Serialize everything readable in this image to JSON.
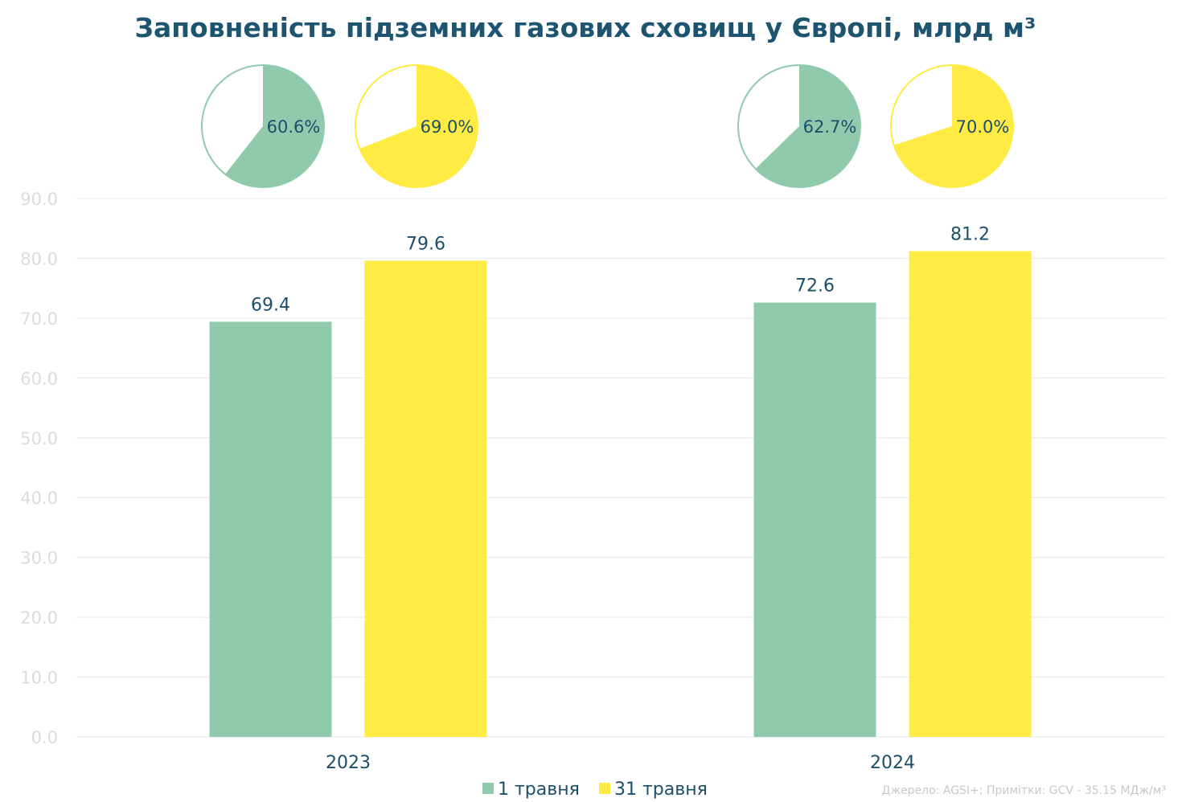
{
  "title": "Заповненість підземних газових сховищ у Європі, млрд м³",
  "source_note": "Джерело: AGSI+; Примітки: GCV - 35.15 МДж/м³",
  "colors": {
    "may1": "#8fcaad",
    "may31": "#ffeb43",
    "text": "#1d4e6a",
    "title": "#1d5571",
    "grid": "#efefef",
    "ytick": "#d7dcdf"
  },
  "chart_data": {
    "type": "bar",
    "categories": [
      "2023",
      "2024"
    ],
    "series": [
      {
        "name": "1 травня",
        "values": [
          69.4,
          72.6
        ],
        "labels": [
          "69.4",
          "72.6"
        ],
        "color": "#8fcaad"
      },
      {
        "name": "31 травня",
        "values": [
          79.6,
          81.2
        ],
        "labels": [
          "79.6",
          "81.2"
        ],
        "color": "#ffeb43"
      }
    ],
    "yticks": [
      "0.0",
      "10.0",
      "20.0",
      "30.0",
      "40.0",
      "50.0",
      "60.0",
      "70.0",
      "80.0",
      "90.0"
    ],
    "ylim": [
      0,
      90
    ],
    "grid": true,
    "legend": "bottom-center",
    "pies": [
      {
        "category": "2023",
        "series": "1 травня",
        "percent": 60.6,
        "label": "60.6%",
        "color": "#8fcaad"
      },
      {
        "category": "2023",
        "series": "31 травня",
        "percent": 69.0,
        "label": "69.0%",
        "color": "#ffeb43"
      },
      {
        "category": "2024",
        "series": "1 травня",
        "percent": 62.7,
        "label": "62.7%",
        "color": "#8fcaad"
      },
      {
        "category": "2024",
        "series": "31 травня",
        "percent": 70.0,
        "label": "70.0%",
        "color": "#ffeb43"
      }
    ]
  }
}
